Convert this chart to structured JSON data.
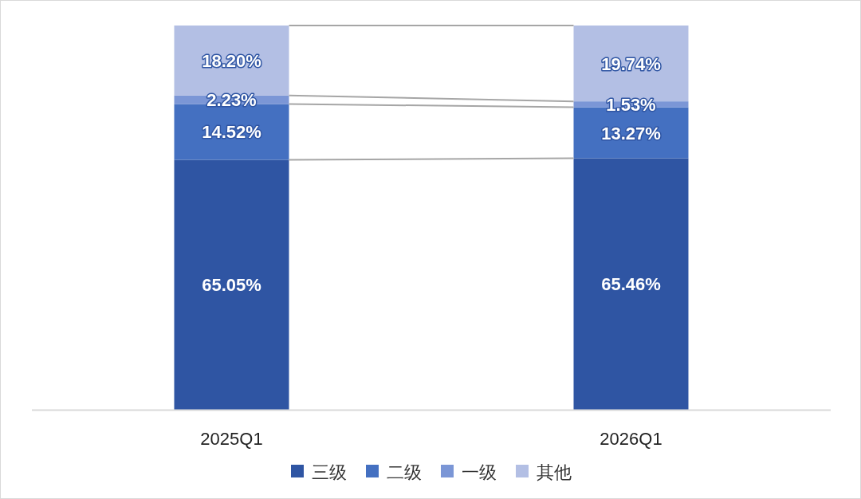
{
  "chart_data": {
    "type": "bar",
    "stacked": true,
    "data_labels": true,
    "legend": "bottom",
    "categories": [
      "2025Q1",
      "2026Q1"
    ],
    "series": [
      {
        "name": "三级",
        "color": "#2f55a3",
        "values": [
          65.05,
          65.46
        ],
        "value_labels": [
          "65.05%",
          "65.46%"
        ]
      },
      {
        "name": "二级",
        "color": "#4470c1",
        "values": [
          14.52,
          13.27
        ],
        "value_labels": [
          "14.52%",
          "13.27%"
        ]
      },
      {
        "name": "一级",
        "color": "#7b96d6",
        "values": [
          2.23,
          1.53
        ],
        "value_labels": [
          "2.23%",
          "1.53%"
        ]
      },
      {
        "name": "其他",
        "color": "#b3bfe4",
        "values": [
          18.2,
          19.74
        ],
        "value_labels": [
          "18.20%",
          "19.74%"
        ]
      }
    ]
  }
}
